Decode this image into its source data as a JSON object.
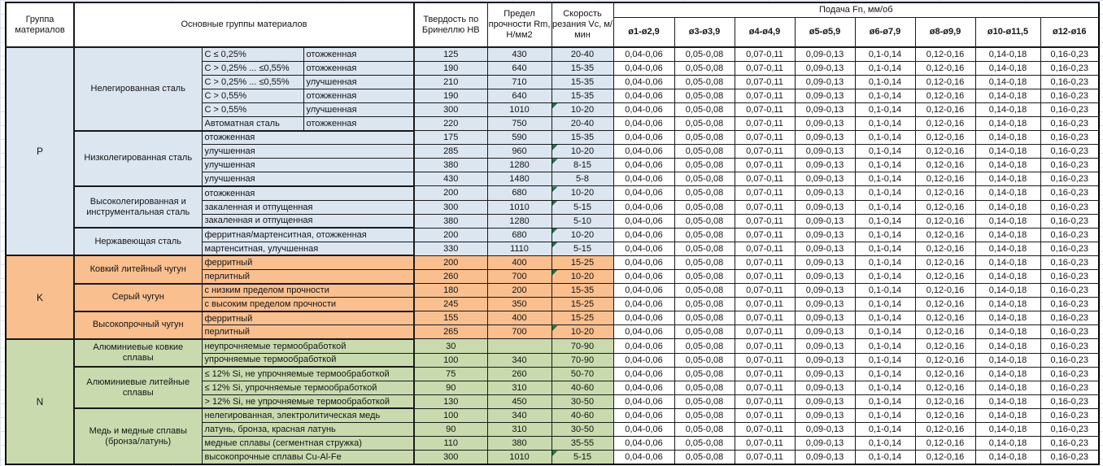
{
  "header": {
    "col_group": "Группа материалов",
    "col_main": "Основные группы материалов",
    "col_hb": "Твердость по Бринеллю HB",
    "col_rm": "Предел прочности Rm, Н/мм2",
    "col_vc": "Скорость резания Vc, м/мин",
    "feed_title": "Подача Fn, мм/об",
    "feed_cols": [
      "ø1-ø2,9",
      "ø3-ø3,9",
      "ø4-ø4,9",
      "ø5-ø5,9",
      "ø6-ø7,9",
      "ø8-ø9,9",
      "ø10-ø11,5",
      "ø12-ø16"
    ]
  },
  "feed_values": [
    "0,04-0,06",
    "0,05-0,08",
    "0,07-0,11",
    "0,09-0,13",
    "0,1-0,14",
    "0,12-0,16",
    "0,14-0,18",
    "0,16-0,23"
  ],
  "note_color": "#1e7145",
  "sections": [
    {
      "letter": "P",
      "color": "#dce6f1",
      "groups": [
        {
          "name": "Нелегированная сталь",
          "rows": [
            {
              "c1": "C ≤ 0,25%",
              "c2": "отожженная",
              "hb": "125",
              "rm": "430",
              "vc": "20-40"
            },
            {
              "c1": "C > 0,25% ... ≤0,55%",
              "c2": "отожженная",
              "hb": "190",
              "rm": "640",
              "vc": "15-35"
            },
            {
              "c1": "C > 0,25% ... ≤0,55%",
              "c2": "улучшенная",
              "hb": "210",
              "rm": "710",
              "vc": "15-35"
            },
            {
              "c1": "C > 0,55%",
              "c2": "отожженная",
              "hb": "190",
              "rm": "640",
              "vc": "15-35"
            },
            {
              "c1": "C > 0,55%",
              "c2": "улучшенная",
              "hb": "300",
              "rm": "1010",
              "vc": "10-20",
              "note": true
            },
            {
              "c1": "Автоматная сталь",
              "c2": "отожженная",
              "hb": "220",
              "rm": "750",
              "vc": "20-40"
            }
          ]
        },
        {
          "name": "Низколегированная сталь",
          "rows": [
            {
              "desc": "отожженная",
              "hb": "175",
              "rm": "590",
              "vc": "15-35"
            },
            {
              "desc": "улучшенная",
              "hb": "285",
              "rm": "960",
              "vc": "10-20",
              "note": true
            },
            {
              "desc": "улучшенная",
              "hb": "380",
              "rm": "1280",
              "vc": "8-15",
              "note": true
            },
            {
              "desc": "улучшенная",
              "hb": "430",
              "rm": "1480",
              "vc": "5-8"
            }
          ]
        },
        {
          "name": "Высоколегированная и инструментальная сталь",
          "rows": [
            {
              "desc": "отожженная",
              "hb": "200",
              "rm": "680",
              "vc": "10-20",
              "note": true
            },
            {
              "desc": "закаленная и отпущенная",
              "hb": "300",
              "rm": "1010",
              "vc": "5-15",
              "note": true
            },
            {
              "desc": "закаленная и отпущенная",
              "hb": "380",
              "rm": "1280",
              "vc": "5-10"
            }
          ]
        },
        {
          "name": "Нержавеющая сталь",
          "rows": [
            {
              "desc": "ферритная/мартенситная, отожженная",
              "hb": "200",
              "rm": "680",
              "vc": "10-20",
              "note": true
            },
            {
              "desc": "мартенситная, улучшенная",
              "hb": "330",
              "rm": "1110",
              "vc": "5-15",
              "note": true
            }
          ]
        }
      ]
    },
    {
      "letter": "K",
      "color": "#fabf8f",
      "groups": [
        {
          "name": "Ковкий литейный чугун",
          "rows": [
            {
              "desc": "ферритный",
              "hb": "200",
              "rm": "400",
              "vc": "15-25"
            },
            {
              "desc": "перлитный",
              "hb": "260",
              "rm": "700",
              "vc": "10-20",
              "note": true
            }
          ]
        },
        {
          "name": "Серый чугун",
          "rows": [
            {
              "desc": "с низким пределом прочности",
              "hb": "180",
              "rm": "200",
              "vc": "15-35"
            },
            {
              "desc": "с высоким пределом прочности",
              "hb": "245",
              "rm": "350",
              "vc": "15-25"
            }
          ]
        },
        {
          "name": "Высокопрочный чугун",
          "rows": [
            {
              "desc": "ферритный",
              "hb": "155",
              "rm": "400",
              "vc": "15-25"
            },
            {
              "desc": "перлитный",
              "hb": "265",
              "rm": "700",
              "vc": "10-20",
              "note": true
            }
          ]
        }
      ]
    },
    {
      "letter": "N",
      "color": "#c9dbae",
      "groups": [
        {
          "name": "Алюминиевые ковкие сплавы",
          "rows": [
            {
              "desc": "неупрочняемые термообработкой",
              "hb": "30",
              "rm": "",
              "vc": "70-90"
            },
            {
              "desc": "упрочняемые термообработкой",
              "hb": "100",
              "rm": "340",
              "vc": "70-90"
            }
          ]
        },
        {
          "name": "Алюминиевые литейные сплавы",
          "rows": [
            {
              "desc": "≤ 12% Si, не упрочняемые термообработкой",
              "hb": "75",
              "rm": "260",
              "vc": "50-70"
            },
            {
              "desc": "≤ 12% Si, упрочняемые термообработкой",
              "hb": "90",
              "rm": "310",
              "vc": "40-60"
            },
            {
              "desc": "> 12% Si, не упрочняемые термообработкой",
              "hb": "130",
              "rm": "450",
              "vc": "30-50"
            }
          ]
        },
        {
          "name": "Медь и медные сплавы (бронза/латунь)",
          "rows": [
            {
              "desc": "нелегированная, электролитическая медь",
              "hb": "100",
              "rm": "340",
              "vc": "40-60"
            },
            {
              "desc": "латунь, бронза, красная латунь",
              "hb": "90",
              "rm": "310",
              "vc": "30-50"
            },
            {
              "desc": "медные сплавы (сегментная стружка)",
              "hb": "110",
              "rm": "380",
              "vc": "35-55"
            },
            {
              "desc": "высокопрочные сплавы Cu-Al-Fe",
              "hb": "300",
              "rm": "1010",
              "vc": "5-15",
              "note": true
            }
          ]
        }
      ]
    }
  ]
}
